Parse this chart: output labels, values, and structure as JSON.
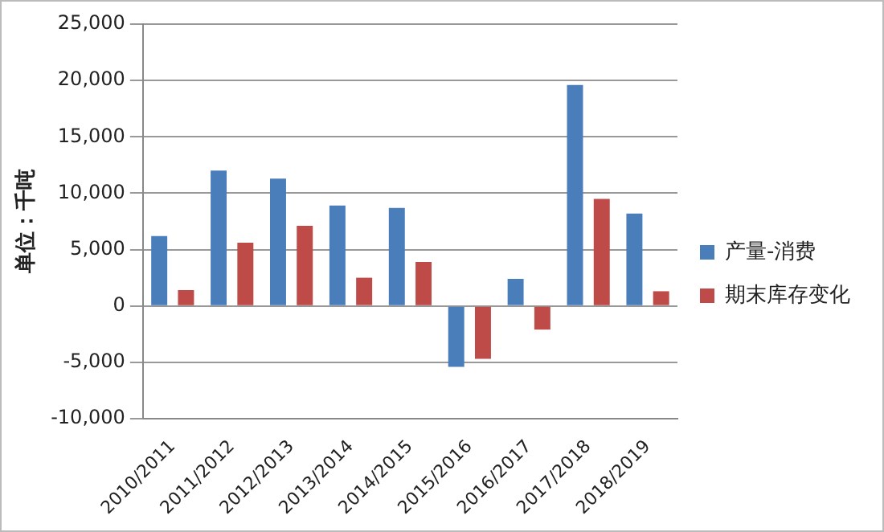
{
  "chart_data": {
    "type": "bar",
    "ylabel": "单位：千吨",
    "categories": [
      "2010/2011",
      "2011/2012",
      "2012/2013",
      "2013/2014",
      "2014/2015",
      "2015/2016",
      "2016/2017",
      "2017/2018",
      "2018/2019"
    ],
    "series": [
      {
        "name": "产量-消费",
        "color": "#4a7ebb",
        "values": [
          6200,
          12000,
          11300,
          8900,
          8700,
          -5400,
          2400,
          19600,
          8200
        ]
      },
      {
        "name": "期末库存变化",
        "color": "#be4b48",
        "values": [
          1400,
          5600,
          7100,
          2500,
          3900,
          -4700,
          -2100,
          9500,
          1300
        ]
      }
    ],
    "ylim": [
      -10000,
      25000
    ],
    "yticks": [
      {
        "value": -10000,
        "label": "-10,000"
      },
      {
        "value": -5000,
        "label": "-5,000"
      },
      0,
      {
        "value": 5000,
        "label": "5,000"
      },
      {
        "value": 10000,
        "label": "10,000"
      },
      {
        "value": 15000,
        "label": "15,000"
      },
      {
        "value": 20000,
        "label": "20,000"
      },
      {
        "value": 25000,
        "label": "25,000"
      }
    ],
    "grid": "y",
    "legend": "right"
  }
}
